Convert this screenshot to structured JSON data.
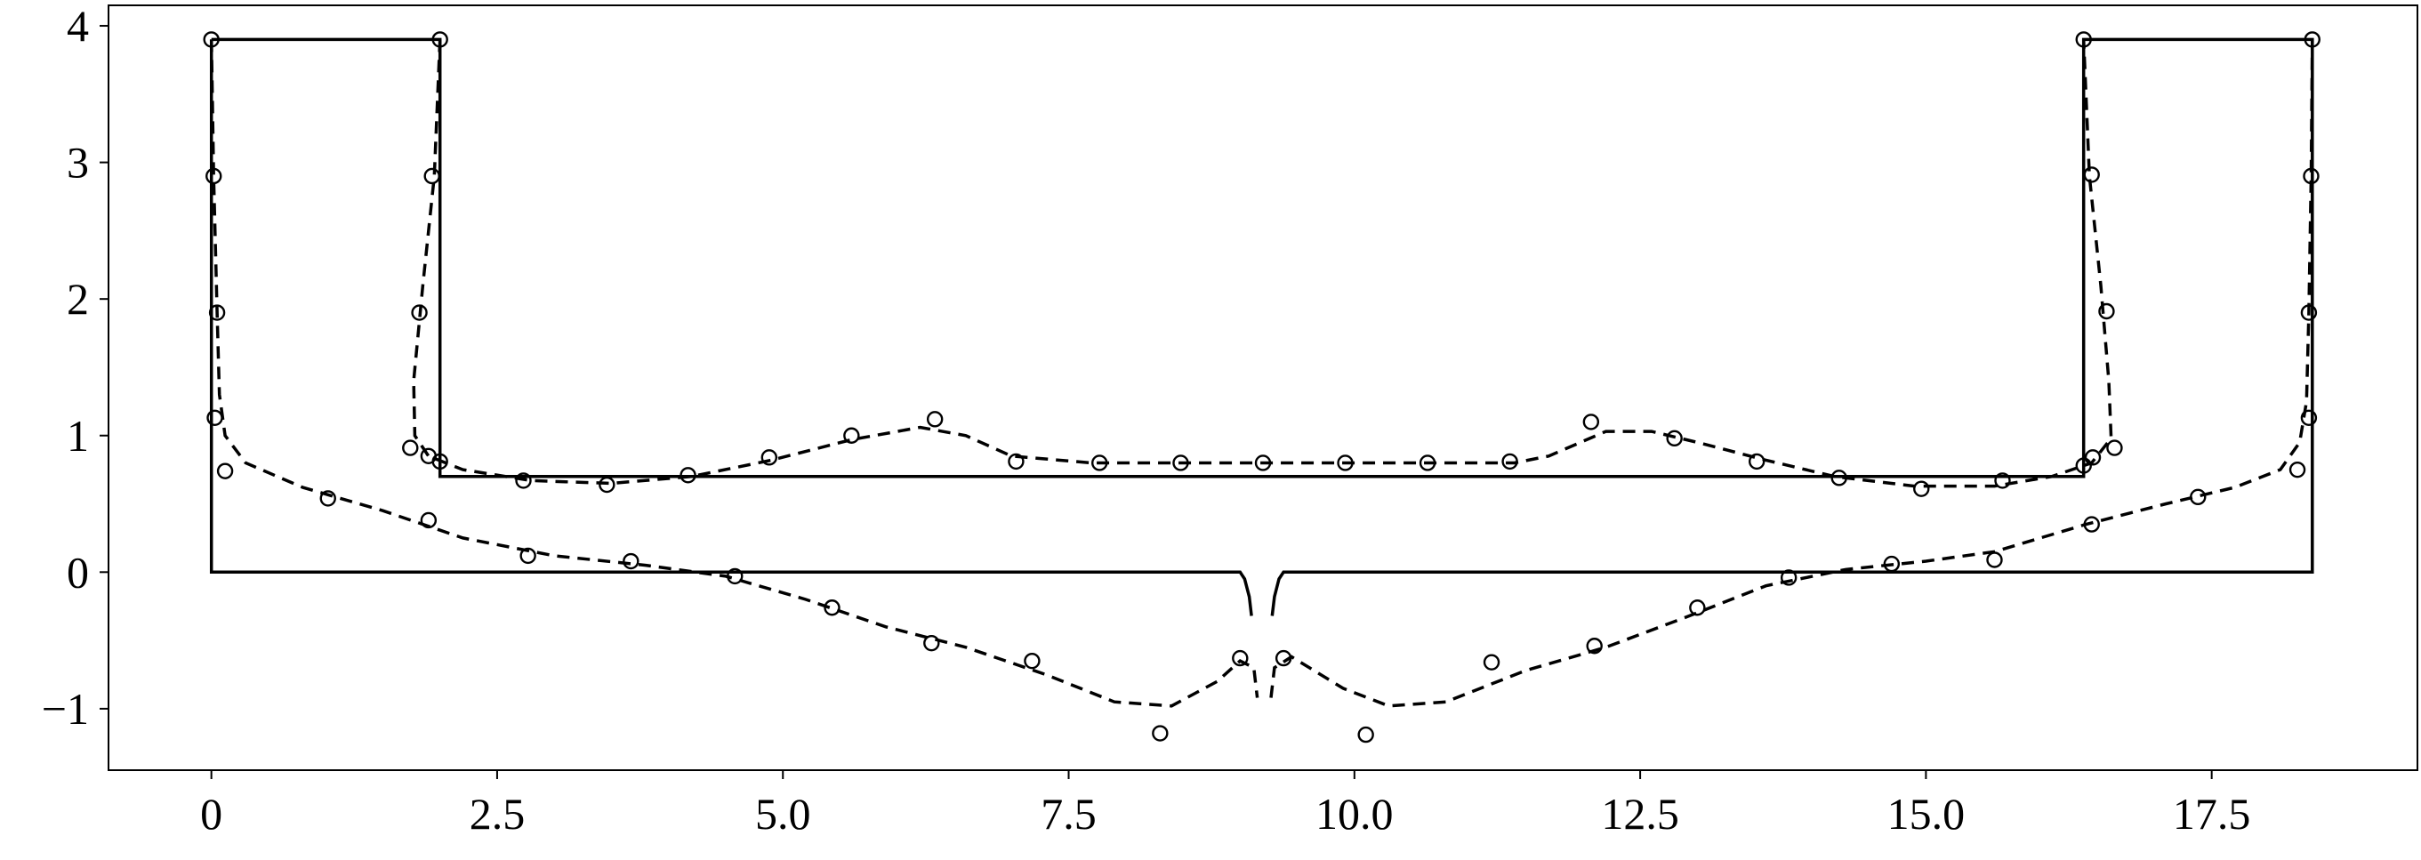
{
  "chart_data": {
    "type": "line",
    "xlim": [
      -0.9,
      19.3
    ],
    "ylim": [
      -1.45,
      4.15
    ],
    "x_ticks": [
      0,
      2.5,
      5.0,
      7.5,
      10.0,
      12.5,
      15.0,
      17.5
    ],
    "x_tick_labels": [
      "0",
      "2.5",
      "5.0",
      "7.5",
      "10.0",
      "12.5",
      "15.0",
      "17.5"
    ],
    "y_ticks": [
      -1,
      0,
      1,
      2,
      3,
      4
    ],
    "y_tick_labels": [
      "−1",
      "0",
      "1",
      "2",
      "3",
      "4"
    ],
    "grid": false,
    "series": [
      {
        "style": "solid",
        "segments": [
          [
            [
              0,
              3.9
            ],
            [
              0,
              0
            ],
            [
              9.0,
              0
            ],
            [
              9.04,
              -0.05
            ],
            [
              9.08,
              -0.18
            ],
            [
              9.1,
              -0.32
            ]
          ],
          [
            [
              9.28,
              -0.32
            ],
            [
              9.3,
              -0.18
            ],
            [
              9.34,
              -0.05
            ],
            [
              9.38,
              0
            ],
            [
              18.38,
              0
            ],
            [
              18.38,
              3.9
            ],
            [
              16.38,
              3.9
            ],
            [
              16.38,
              0.7
            ],
            [
              2.0,
              0.7
            ],
            [
              2.0,
              3.9
            ],
            [
              0,
              3.9
            ]
          ]
        ]
      },
      {
        "style": "dashed",
        "segments": [
          [
            [
              0.0,
              3.9
            ],
            [
              0.02,
              2.9
            ],
            [
              0.05,
              1.9
            ],
            [
              0.07,
              1.3
            ],
            [
              0.12,
              1.0
            ],
            [
              0.3,
              0.8
            ],
            [
              0.8,
              0.62
            ],
            [
              1.5,
              0.45
            ],
            [
              2.2,
              0.25
            ],
            [
              3.0,
              0.12
            ],
            [
              3.8,
              0.05
            ],
            [
              4.5,
              -0.03
            ],
            [
              5.2,
              -0.2
            ],
            [
              5.9,
              -0.4
            ],
            [
              6.6,
              -0.55
            ],
            [
              7.3,
              -0.75
            ],
            [
              7.9,
              -0.95
            ],
            [
              8.4,
              -0.98
            ],
            [
              8.8,
              -0.8
            ],
            [
              9.0,
              -0.65
            ],
            [
              9.12,
              -0.7
            ],
            [
              9.15,
              -0.92
            ]
          ],
          [
            [
              9.27,
              -0.92
            ],
            [
              9.3,
              -0.7
            ],
            [
              9.45,
              -0.62
            ],
            [
              9.9,
              -0.85
            ],
            [
              10.3,
              -0.98
            ],
            [
              10.8,
              -0.95
            ],
            [
              11.5,
              -0.72
            ],
            [
              12.2,
              -0.55
            ],
            [
              12.9,
              -0.33
            ],
            [
              13.6,
              -0.1
            ],
            [
              14.3,
              0.02
            ],
            [
              15.0,
              0.08
            ],
            [
              15.6,
              0.15
            ],
            [
              16.4,
              0.35
            ],
            [
              17.1,
              0.5
            ],
            [
              17.7,
              0.62
            ],
            [
              18.1,
              0.75
            ],
            [
              18.27,
              0.95
            ],
            [
              18.33,
              1.25
            ],
            [
              18.35,
              1.9
            ],
            [
              18.37,
              2.9
            ],
            [
              18.38,
              3.9
            ]
          ],
          [
            [
              2.0,
              3.9
            ],
            [
              1.95,
              2.9
            ],
            [
              1.85,
              2.1
            ],
            [
              1.77,
              1.4
            ],
            [
              1.78,
              1.0
            ],
            [
              1.9,
              0.85
            ],
            [
              2.2,
              0.75
            ],
            [
              2.8,
              0.67
            ],
            [
              3.5,
              0.65
            ],
            [
              4.2,
              0.7
            ],
            [
              4.9,
              0.82
            ],
            [
              5.6,
              0.97
            ],
            [
              6.2,
              1.06
            ],
            [
              6.6,
              1.0
            ],
            [
              7.0,
              0.85
            ],
            [
              7.7,
              0.8
            ],
            [
              11.4,
              0.8
            ],
            [
              11.7,
              0.85
            ],
            [
              12.2,
              1.03
            ],
            [
              12.6,
              1.03
            ],
            [
              13.0,
              0.95
            ],
            [
              13.6,
              0.82
            ],
            [
              14.2,
              0.7
            ],
            [
              14.9,
              0.63
            ],
            [
              15.6,
              0.63
            ],
            [
              16.1,
              0.7
            ],
            [
              16.45,
              0.8
            ],
            [
              16.62,
              0.98
            ],
            [
              16.6,
              1.4
            ],
            [
              16.53,
              2.1
            ],
            [
              16.43,
              2.9
            ],
            [
              16.38,
              3.9
            ]
          ]
        ]
      },
      {
        "style": "markers",
        "marker": "open-circle",
        "points": [
          [
            0.0,
            3.9
          ],
          [
            0.02,
            2.9
          ],
          [
            0.05,
            1.9
          ],
          [
            0.03,
            1.13
          ],
          [
            0.12,
            0.74
          ],
          [
            1.02,
            0.54
          ],
          [
            1.9,
            0.38
          ],
          [
            2.77,
            0.12
          ],
          [
            3.67,
            0.08
          ],
          [
            4.58,
            -0.03
          ],
          [
            5.43,
            -0.26
          ],
          [
            6.3,
            -0.52
          ],
          [
            7.18,
            -0.65
          ],
          [
            8.3,
            -1.18
          ],
          [
            9.0,
            -0.63
          ],
          [
            9.38,
            -0.63
          ],
          [
            10.1,
            -1.19
          ],
          [
            11.2,
            -0.66
          ],
          [
            12.1,
            -0.54
          ],
          [
            13.0,
            -0.26
          ],
          [
            13.8,
            -0.04
          ],
          [
            14.7,
            0.06
          ],
          [
            15.6,
            0.09
          ],
          [
            16.45,
            0.35
          ],
          [
            17.38,
            0.55
          ],
          [
            18.25,
            0.75
          ],
          [
            18.35,
            1.13
          ],
          [
            18.35,
            1.9
          ],
          [
            18.37,
            2.9
          ],
          [
            18.38,
            3.9
          ],
          [
            2.0,
            3.9
          ],
          [
            1.93,
            2.9
          ],
          [
            1.82,
            1.9
          ],
          [
            1.74,
            0.91
          ],
          [
            1.9,
            0.85
          ],
          [
            2.0,
            0.81
          ],
          [
            2.73,
            0.67
          ],
          [
            3.46,
            0.64
          ],
          [
            4.17,
            0.71
          ],
          [
            4.88,
            0.84
          ],
          [
            5.6,
            1.0
          ],
          [
            6.33,
            1.12
          ],
          [
            7.04,
            0.81
          ],
          [
            7.77,
            0.8
          ],
          [
            8.48,
            0.8
          ],
          [
            9.2,
            0.8
          ],
          [
            9.92,
            0.8
          ],
          [
            10.64,
            0.8
          ],
          [
            11.36,
            0.81
          ],
          [
            12.07,
            1.1
          ],
          [
            12.8,
            0.98
          ],
          [
            13.52,
            0.81
          ],
          [
            14.24,
            0.69
          ],
          [
            14.96,
            0.61
          ],
          [
            15.67,
            0.67
          ],
          [
            16.38,
            0.78
          ],
          [
            16.46,
            0.84
          ],
          [
            16.65,
            0.91
          ],
          [
            16.58,
            1.91
          ],
          [
            16.45,
            2.91
          ],
          [
            16.38,
            3.9
          ]
        ]
      }
    ]
  }
}
